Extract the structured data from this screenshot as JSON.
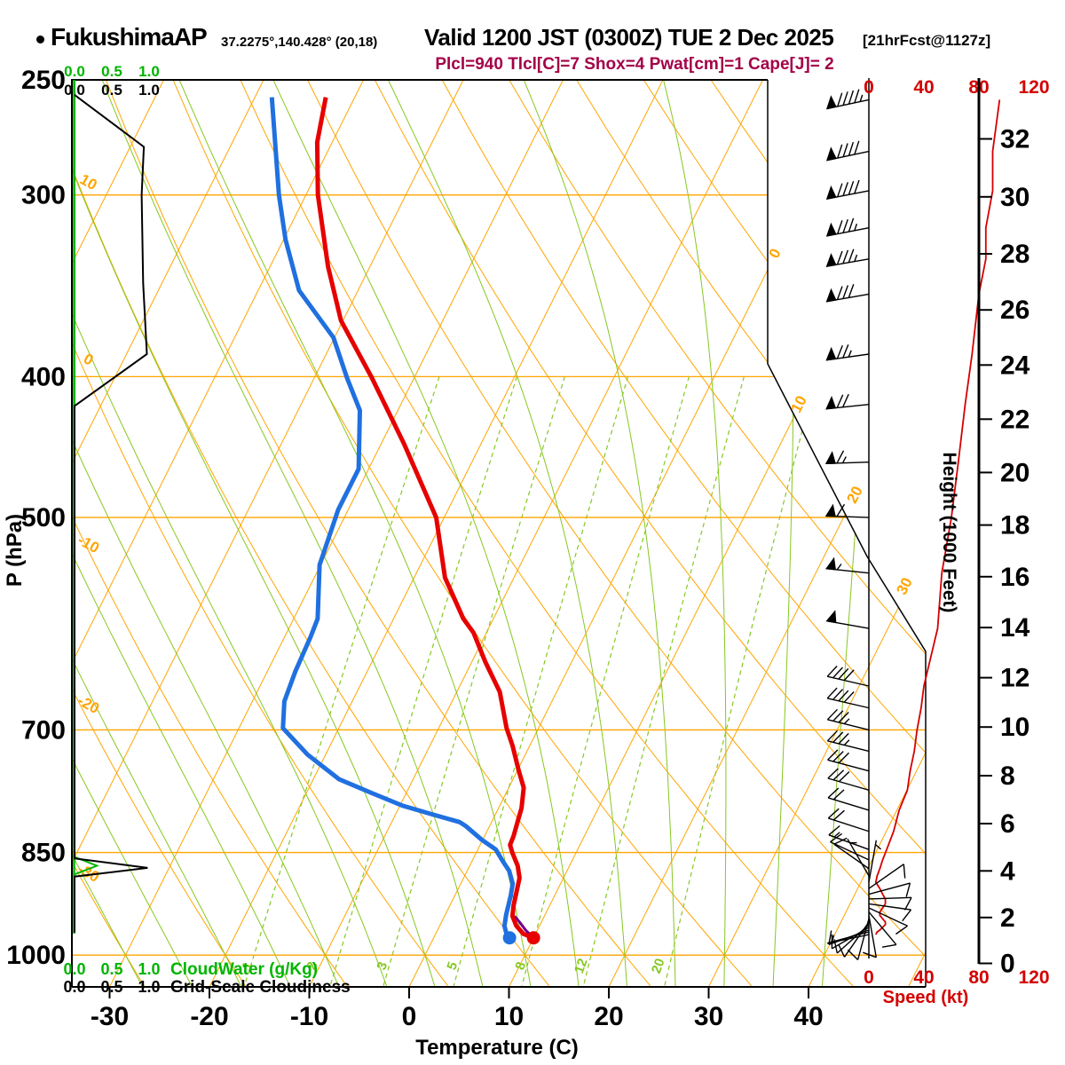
{
  "header": {
    "station": "FukushimaAP",
    "coords": "37.2275°,140.428° (20,18)",
    "valid": "Valid 1200 JST (0300Z) TUE 2 Dec 2025",
    "fcst": "[21hrFcst@1127z]",
    "params": "Plcl=940 Tlcl[C]=7 Shox=4 Pwat[cm]=1 Cape[J]= 2"
  },
  "colors": {
    "grid_orange": "#ffa500",
    "adiabat_green": "#86c820",
    "bright_green": "#00b400",
    "temperature_red": "#e60000",
    "dewpoint_blue": "#2070e0",
    "speed_red": "#d40000",
    "parcel_purple": "#70008c",
    "header_maroon": "#a30048",
    "black": "#000000"
  },
  "chart_data": {
    "type": "skewt_log_p_sounding",
    "axes": {
      "pressure": {
        "label": "P (hPa)",
        "ticks": [
          250,
          300,
          400,
          500,
          700,
          850,
          1000
        ],
        "range": [
          250,
          1050
        ]
      },
      "temperature": {
        "label": "Temperature (C)",
        "ticks": [
          -30,
          -20,
          -10,
          0,
          10,
          20,
          30,
          40
        ],
        "unit": "C"
      },
      "height": {
        "label": "Height (1000 Feet)",
        "ticks": [
          0,
          2,
          4,
          6,
          8,
          10,
          12,
          14,
          16,
          18,
          20,
          22,
          24,
          26,
          28,
          30,
          32
        ]
      },
      "speed": {
        "label": "Speed (kt)",
        "ticks": [
          0,
          40,
          80,
          120
        ]
      },
      "cloudwater": {
        "label": "CloudWater (g/Kg)",
        "ticks": [
          "0.0",
          "0.5",
          "1.0"
        ]
      },
      "cloudiness": {
        "label": "Grid-Scale Cloudiness",
        "ticks": [
          "0.0",
          "0.5",
          "1.0"
        ]
      }
    },
    "temperature_profile_p_c": [
      [
        973,
        10.0
      ],
      [
        967,
        8.8
      ],
      [
        955,
        7.7
      ],
      [
        940,
        6.8
      ],
      [
        925,
        6.4
      ],
      [
        900,
        5.9
      ],
      [
        885,
        5.6
      ],
      [
        868,
        4.8
      ],
      [
        850,
        3.6
      ],
      [
        840,
        3.0
      ],
      [
        828,
        2.9
      ],
      [
        810,
        2.6
      ],
      [
        792,
        2.3
      ],
      [
        767,
        1.5
      ],
      [
        746,
        0.1
      ],
      [
        718,
        -1.7
      ],
      [
        698,
        -3.2
      ],
      [
        659,
        -5.7
      ],
      [
        629,
        -8.6
      ],
      [
        600,
        -11.3
      ],
      [
        587,
        -13.0
      ],
      [
        550,
        -16.9
      ],
      [
        500,
        -20.8
      ],
      [
        445,
        -27.7
      ],
      [
        401,
        -34.2
      ],
      [
        366,
        -40.2
      ],
      [
        336,
        -44.2
      ],
      [
        300,
        -48.8
      ],
      [
        276,
        -51.5
      ],
      [
        257,
        -52.9
      ]
    ],
    "dewpoint_profile_p_c": [
      [
        973,
        7.6
      ],
      [
        967,
        7.1
      ],
      [
        955,
        6.5
      ],
      [
        938,
        6.1
      ],
      [
        910,
        5.6
      ],
      [
        893,
        5.2
      ],
      [
        875,
        4.2
      ],
      [
        862,
        3.1
      ],
      [
        846,
        1.8
      ],
      [
        833,
        -0.1
      ],
      [
        815,
        -2.4
      ],
      [
        810,
        -3.2
      ],
      [
        800,
        -6.4
      ],
      [
        789,
        -9.8
      ],
      [
        773,
        -13.6
      ],
      [
        757,
        -17.4
      ],
      [
        728,
        -21.8
      ],
      [
        698,
        -25.6
      ],
      [
        669,
        -26.8
      ],
      [
        638,
        -27.2
      ],
      [
        604,
        -27.4
      ],
      [
        587,
        -27.6
      ],
      [
        539,
        -30.1
      ],
      [
        494,
        -31.0
      ],
      [
        463,
        -31.0
      ],
      [
        422,
        -33.8
      ],
      [
        401,
        -36.7
      ],
      [
        376,
        -40.1
      ],
      [
        349,
        -45.9
      ],
      [
        322,
        -49.8
      ],
      [
        300,
        -52.7
      ],
      [
        257,
        -58.3
      ]
    ],
    "parcel_profile_p_c": [
      [
        973,
        10.0
      ],
      [
        962,
        8.9
      ],
      [
        950,
        7.9
      ],
      [
        940,
        7.0
      ]
    ],
    "surface_dots_p_c": {
      "temperature": [
        973,
        10.0
      ],
      "dewpoint": [
        973,
        7.6
      ]
    },
    "winds_p_kt_dir": [
      [
        258,
        95,
        258
      ],
      [
        280,
        90,
        258
      ],
      [
        298,
        90,
        259
      ],
      [
        316,
        85,
        259
      ],
      [
        332,
        85,
        260
      ],
      [
        351,
        80,
        260
      ],
      [
        386,
        75,
        262
      ],
      [
        418,
        70,
        264
      ],
      [
        458,
        65,
        268
      ],
      [
        500,
        60,
        272
      ],
      [
        546,
        53,
        276
      ],
      [
        596,
        50,
        280
      ],
      [
        653,
        40,
        283
      ],
      [
        676,
        38,
        283
      ],
      [
        700,
        35,
        284
      ],
      [
        724,
        33,
        284
      ],
      [
        747,
        30,
        285
      ],
      [
        770,
        28,
        286
      ],
      [
        795,
        22,
        287
      ],
      [
        822,
        18,
        288
      ],
      [
        846,
        13,
        290
      ],
      [
        860,
        10,
        295
      ],
      [
        872,
        8,
        305
      ],
      [
        882,
        6,
        330
      ],
      [
        891,
        5,
        10
      ],
      [
        900,
        8,
        55
      ],
      [
        908,
        10,
        75
      ],
      [
        915,
        12,
        88
      ],
      [
        922,
        12,
        98
      ],
      [
        928,
        10,
        115
      ],
      [
        934,
        8,
        140
      ],
      [
        939,
        8,
        170
      ],
      [
        944,
        10,
        195
      ],
      [
        949,
        12,
        215
      ],
      [
        953,
        12,
        228
      ],
      [
        957,
        10,
        240
      ],
      [
        961,
        8,
        250
      ],
      [
        964,
        6,
        255
      ],
      [
        968,
        5,
        258
      ]
    ],
    "cloudiness_profile_p_frac": [
      [
        256,
        0
      ],
      [
        278,
        0.93
      ],
      [
        300,
        0.9
      ],
      [
        345,
        0.92
      ],
      [
        386,
        0.97
      ],
      [
        419,
        0
      ],
      [
        858,
        0
      ],
      [
        871,
        0.98
      ],
      [
        883,
        0
      ],
      [
        965,
        0
      ]
    ],
    "cloudwater_profile_p_frac": [
      [
        250,
        0
      ],
      [
        856,
        0
      ],
      [
        868,
        0.3
      ],
      [
        880,
        0
      ],
      [
        965,
        0
      ]
    ],
    "dry_adiabat_labels_c_p": [
      [
        10,
        296
      ],
      [
        0,
        392
      ],
      [
        -10,
        525
      ],
      [
        -20,
        677
      ],
      [
        -30,
        884
      ]
    ],
    "isotherm_labels_c_xy": [
      [
        0,
        878,
        288
      ],
      [
        10,
        905,
        458
      ],
      [
        20,
        968,
        560
      ],
      [
        30,
        1024,
        663
      ]
    ],
    "mixing_ratio_lines_gkg": [
      1,
      2,
      3,
      5,
      8,
      12,
      20
    ],
    "mixing_ratio_label_x": [
      283,
      356,
      435,
      514,
      591,
      659,
      746
    ],
    "grid": {
      "isotherm_step_c": 10,
      "dry_adiabat_step_c": 10,
      "moist_adiabat_step_c": 5,
      "mixing_top_hpa": 400
    }
  }
}
